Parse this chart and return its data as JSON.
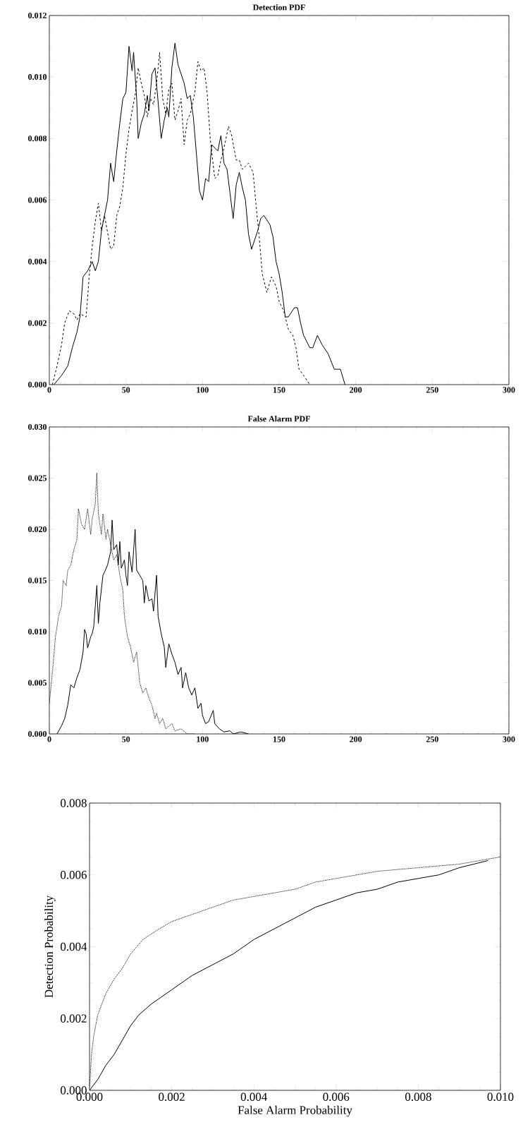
{
  "chart_data": [
    {
      "type": "line",
      "title": "Detection PDF",
      "xlim": [
        0,
        300
      ],
      "ylim": [
        0,
        0.012
      ],
      "xticks": [
        0,
        50,
        100,
        150,
        200,
        250,
        300
      ],
      "yticks": [
        {
          "value": 0,
          "label": "0.000"
        },
        {
          "value": 0.002,
          "label": "0.002"
        },
        {
          "value": 0.004,
          "label": "0.004"
        },
        {
          "value": 0.006,
          "label": "0.006"
        },
        {
          "value": 0.008,
          "label": "0.008"
        },
        {
          "value": 0.01,
          "label": "0.010"
        },
        {
          "value": 0.012,
          "label": "0.012"
        }
      ],
      "series": [
        {
          "color": "#000000",
          "line_style": "solid",
          "x": [
            3,
            8,
            12,
            15,
            18,
            20,
            22,
            25,
            28,
            30,
            32,
            34,
            36,
            38,
            40,
            42,
            44,
            46,
            48,
            50,
            52,
            54,
            55,
            57,
            58,
            60,
            62,
            64,
            65,
            67,
            69,
            71,
            73,
            75,
            77,
            78,
            80,
            82,
            84,
            88,
            90,
            92,
            94,
            96,
            98,
            100,
            102,
            104,
            106,
            108,
            110,
            112,
            114,
            116,
            118,
            120,
            122,
            124,
            126,
            128,
            130,
            132,
            134,
            136,
            138,
            140,
            144,
            146,
            148,
            150,
            152,
            154,
            156,
            160,
            162,
            164,
            166,
            168,
            170,
            172,
            175,
            178,
            182,
            186,
            190,
            193
          ],
          "values": [
            0,
            0.0003,
            0.0006,
            0.0012,
            0.0017,
            0.0022,
            0.0035,
            0.0037,
            0.004,
            0.0037,
            0.004,
            0.005,
            0.0055,
            0.006,
            0.0072,
            0.0066,
            0.0076,
            0.0085,
            0.0093,
            0.0095,
            0.011,
            0.0102,
            0.0108,
            0.0093,
            0.008,
            0.0085,
            0.0088,
            0.0094,
            0.0089,
            0.0101,
            0.0103,
            0.0092,
            0.008,
            0.0086,
            0.009,
            0.0087,
            0.0103,
            0.0111,
            0.0104,
            0.0098,
            0.0093,
            0.0094,
            0.0087,
            0.0075,
            0.0063,
            0.006,
            0.0067,
            0.0066,
            0.0078,
            0.0077,
            0.0076,
            0.0081,
            0.0072,
            0.007,
            0.0062,
            0.0054,
            0.0065,
            0.0069,
            0.0064,
            0.006,
            0.0049,
            0.0044,
            0.0047,
            0.005,
            0.0054,
            0.0055,
            0.0052,
            0.0048,
            0.004,
            0.0036,
            0.003,
            0.0022,
            0.0022,
            0.0025,
            0.0025,
            0.002,
            0.0016,
            0.0014,
            0.0012,
            0.0012,
            0.0016,
            0.0013,
            0.001,
            0.0005,
            0.0005,
            0
          ]
        },
        {
          "color": "#000000",
          "line_style": "dashed",
          "x": [
            2,
            5,
            8,
            10,
            13,
            16,
            18,
            20,
            24,
            26,
            28,
            30,
            32,
            34,
            36,
            40,
            42,
            44,
            46,
            48,
            50,
            52,
            54,
            56,
            58,
            60,
            62,
            64,
            66,
            68,
            70,
            72,
            74,
            76,
            78,
            80,
            82,
            84,
            86,
            88,
            90,
            92,
            95,
            97,
            99,
            101,
            103,
            105,
            108,
            110,
            112,
            114,
            117,
            119,
            122,
            124,
            126,
            128,
            130,
            133,
            135,
            137,
            139,
            142,
            145,
            148,
            150,
            153,
            156,
            159,
            161,
            163,
            166,
            170
          ],
          "values": [
            0,
            0.0006,
            0.0013,
            0.002,
            0.0024,
            0.0023,
            0.0021,
            0.0023,
            0.0022,
            0.0035,
            0.0045,
            0.0053,
            0.0059,
            0.005,
            0.0055,
            0.0044,
            0.0045,
            0.0055,
            0.0058,
            0.0064,
            0.0075,
            0.0083,
            0.0089,
            0.0094,
            0.0103,
            0.0098,
            0.0094,
            0.0087,
            0.0093,
            0.0091,
            0.0098,
            0.0108,
            0.0093,
            0.0088,
            0.0096,
            0.0098,
            0.0086,
            0.0089,
            0.0093,
            0.0078,
            0.0086,
            0.0088,
            0.0095,
            0.0105,
            0.0102,
            0.0103,
            0.0095,
            0.008,
            0.0067,
            0.0068,
            0.0073,
            0.0077,
            0.0084,
            0.0081,
            0.0073,
            0.0073,
            0.007,
            0.0071,
            0.0072,
            0.0069,
            0.0058,
            0.0048,
            0.0036,
            0.003,
            0.0035,
            0.0032,
            0.0027,
            0.0024,
            0.0018,
            0.0016,
            0.0012,
            0.0005,
            0.0003,
            0
          ]
        }
      ]
    },
    {
      "type": "line",
      "title": "False Alarm PDF",
      "xlim": [
        0,
        300
      ],
      "ylim": [
        0,
        0.03
      ],
      "xticks": [
        0,
        50,
        100,
        150,
        200,
        250,
        300
      ],
      "yticks": [
        {
          "value": 0,
          "label": "0.000"
        },
        {
          "value": 0.005,
          "label": "0.005"
        },
        {
          "value": 0.01,
          "label": "0.010"
        },
        {
          "value": 0.015,
          "label": "0.015"
        },
        {
          "value": 0.02,
          "label": "0.020"
        },
        {
          "value": 0.025,
          "label": "0.025"
        },
        {
          "value": 0.03,
          "label": "0.030"
        }
      ],
      "series": [
        {
          "color": "#000000",
          "line_style": "solid",
          "x": [
            5,
            8,
            10,
            12,
            14,
            16,
            18,
            20,
            22,
            23,
            24,
            25,
            27,
            28,
            29,
            30,
            31,
            32,
            33,
            35,
            36,
            38,
            40,
            41,
            42,
            44,
            45,
            46,
            47,
            49,
            50,
            51,
            52,
            54,
            56,
            57,
            59,
            61,
            62,
            63,
            65,
            67,
            68,
            70,
            71,
            73,
            75,
            76,
            78,
            80,
            82,
            84,
            86,
            87,
            89,
            91,
            93,
            95,
            97,
            99,
            100,
            102,
            104,
            107,
            108,
            111,
            114,
            118,
            120,
            125,
            130
          ],
          "values": [
            0,
            0.0008,
            0.0015,
            0.0028,
            0.0048,
            0.0045,
            0.0055,
            0.0063,
            0.008,
            0.0102,
            0.0098,
            0.0084,
            0.0095,
            0.0098,
            0.0105,
            0.0125,
            0.0145,
            0.0108,
            0.0128,
            0.0155,
            0.0158,
            0.0165,
            0.0178,
            0.0209,
            0.018,
            0.0185,
            0.0165,
            0.0188,
            0.0162,
            0.017,
            0.0155,
            0.0145,
            0.0178,
            0.0158,
            0.02,
            0.016,
            0.0155,
            0.015,
            0.0128,
            0.0145,
            0.013,
            0.0132,
            0.012,
            0.0155,
            0.0115,
            0.0098,
            0.0085,
            0.0065,
            0.0088,
            0.0078,
            0.007,
            0.0058,
            0.0065,
            0.0045,
            0.006,
            0.0045,
            0.0038,
            0.0045,
            0.0025,
            0.003,
            0.0018,
            0.001,
            0.0012,
            0.0023,
            0.001,
            0.0005,
            0.0002,
            0.0003,
            0,
            0.0002,
            0
          ]
        },
        {
          "color": "#000000",
          "line_style": "dotted",
          "x": [
            0,
            2,
            4,
            6,
            8,
            9,
            11,
            12,
            14,
            16,
            18,
            19,
            21,
            23,
            25,
            27,
            28,
            30,
            31,
            32,
            34,
            35,
            37,
            38,
            40,
            42,
            44,
            46,
            48,
            49,
            51,
            53,
            55,
            57,
            59,
            61,
            63,
            65,
            67,
            69,
            70,
            72,
            74,
            76,
            80,
            82,
            86,
            90,
            95
          ],
          "values": [
            0.003,
            0.006,
            0.0095,
            0.0115,
            0.0125,
            0.015,
            0.0145,
            0.016,
            0.0165,
            0.018,
            0.019,
            0.022,
            0.0205,
            0.02,
            0.022,
            0.0195,
            0.021,
            0.0225,
            0.0255,
            0.0215,
            0.0195,
            0.0215,
            0.019,
            0.02,
            0.0185,
            0.017,
            0.0175,
            0.0155,
            0.014,
            0.0115,
            0.0095,
            0.0085,
            0.007,
            0.008,
            0.005,
            0.004,
            0.0045,
            0.0035,
            0.0028,
            0.0015,
            0.002,
            0.001,
            0.0015,
            0.0005,
            0.001,
            0.0003,
            0.0005,
            0,
            0
          ]
        }
      ]
    },
    {
      "type": "line",
      "xlabel": "False Alarm Probability",
      "ylabel": "Detection Probability",
      "xlim": [
        0,
        0.01
      ],
      "ylim": [
        0,
        0.008
      ],
      "xticks": [
        {
          "value": 0,
          "label": "0.000"
        },
        {
          "value": 0.002,
          "label": "0.002"
        },
        {
          "value": 0.004,
          "label": "0.004"
        },
        {
          "value": 0.006,
          "label": "0.006"
        },
        {
          "value": 0.008,
          "label": "0.008"
        },
        {
          "value": 0.01,
          "label": "0.010"
        }
      ],
      "yticks": [
        {
          "value": 0,
          "label": "0.000"
        },
        {
          "value": 0.002,
          "label": "0.002"
        },
        {
          "value": 0.004,
          "label": "0.004"
        },
        {
          "value": 0.006,
          "label": "0.006"
        },
        {
          "value": 0.008,
          "label": "0.008"
        }
      ],
      "series": [
        {
          "color": "#000000",
          "line_style": "solid",
          "x": [
            0,
            0.0002,
            0.0004,
            0.0006,
            0.0008,
            0.001,
            0.0012,
            0.0015,
            0.002,
            0.0025,
            0.003,
            0.0035,
            0.004,
            0.0045,
            0.005,
            0.0055,
            0.006,
            0.0065,
            0.007,
            0.0075,
            0.008,
            0.0085,
            0.009,
            0.0097
          ],
          "values": [
            0,
            0.0003,
            0.0007,
            0.001,
            0.0014,
            0.0018,
            0.0021,
            0.0024,
            0.0028,
            0.0032,
            0.0035,
            0.0038,
            0.0042,
            0.0045,
            0.0048,
            0.0051,
            0.0053,
            0.0055,
            0.0056,
            0.0058,
            0.0059,
            0.006,
            0.0062,
            0.0064
          ]
        },
        {
          "color": "#000000",
          "line_style": "dotted",
          "x": [
            0,
            5e-05,
            0.0001,
            0.0002,
            0.0004,
            0.0006,
            0.0008,
            0.001,
            0.0013,
            0.0017,
            0.002,
            0.0025,
            0.003,
            0.0035,
            0.004,
            0.0045,
            0.005,
            0.0055,
            0.006,
            0.0065,
            0.007,
            0.008,
            0.009,
            0.01
          ],
          "values": [
            0.0001,
            0.001,
            0.0015,
            0.0021,
            0.0027,
            0.0031,
            0.0034,
            0.0038,
            0.0042,
            0.0045,
            0.0047,
            0.0049,
            0.0051,
            0.0053,
            0.0054,
            0.0055,
            0.0056,
            0.0058,
            0.0059,
            0.006,
            0.0061,
            0.0062,
            0.0063,
            0.0065
          ]
        }
      ]
    }
  ]
}
